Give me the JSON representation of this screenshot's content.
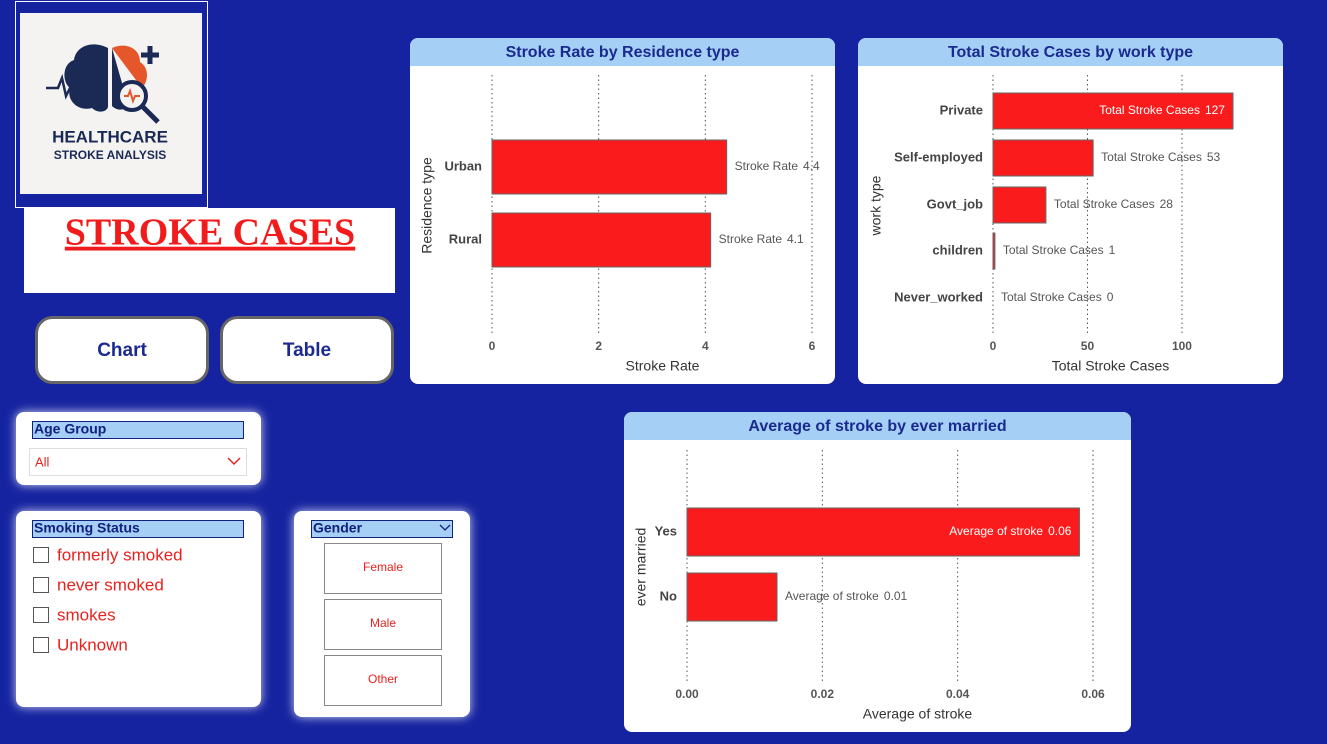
{
  "logo": {
    "line1": "HEALTHCARE",
    "line2": "STROKE ANALYSIS"
  },
  "heading": "STROKE CASES",
  "buttons": [
    "Chart",
    "Table"
  ],
  "slicers": {
    "age_group": {
      "title": "Age Group",
      "selected": "All"
    },
    "smoking_status": {
      "title": "Smoking Status",
      "options": [
        "formerly smoked",
        "never smoked",
        "smokes",
        "Unknown"
      ]
    },
    "gender": {
      "title": "Gender",
      "options": [
        "Female",
        "Male",
        "Other"
      ]
    }
  },
  "chart_data": [
    {
      "type": "bar",
      "orientation": "horizontal",
      "title": "Stroke Rate by Residence type",
      "x_label": "Stroke Rate",
      "y_label": "Residence type",
      "categories": [
        "Urban",
        "Rural"
      ],
      "series": [
        {
          "name": "Stroke Rate",
          "color": "#fa1c1c",
          "values": [
            4.4,
            4.1
          ]
        }
      ],
      "xlim": [
        0,
        6
      ],
      "xticks": [
        0,
        2,
        4,
        6
      ],
      "grid": true
    },
    {
      "type": "bar",
      "orientation": "horizontal",
      "title": "Total Stroke Cases by work type",
      "x_label": "Total Stroke Cases",
      "y_label": "work type",
      "categories": [
        "Private",
        "Self-employed",
        "Govt_job",
        "children",
        "Never_worked"
      ],
      "series": [
        {
          "name": "Total Stroke Cases",
          "color": "#fa1c1c",
          "values": [
            127,
            53,
            28,
            1,
            0
          ]
        }
      ],
      "xlim": [
        0,
        145
      ],
      "xticks": [
        0,
        50,
        100
      ],
      "grid": true
    },
    {
      "type": "bar",
      "orientation": "horizontal",
      "title": "Average of stroke by ever married",
      "x_label": "Average of stroke",
      "y_label": "ever married",
      "categories": [
        "Yes",
        "No"
      ],
      "series": [
        {
          "name": "Average of stroke",
          "color": "#fa1c1c",
          "values": [
            0.058,
            0.0133
          ],
          "value_labels": [
            "0.06",
            "0.01"
          ]
        }
      ],
      "xlim": [
        0,
        0.06
      ],
      "xticks": [
        {
          "value": 0,
          "label": "0.00"
        },
        0.02,
        0.04,
        0.06
      ],
      "grid": true
    }
  ]
}
